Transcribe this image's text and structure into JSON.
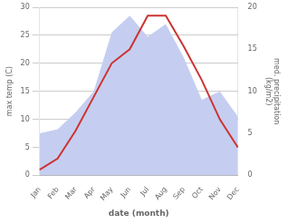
{
  "chart_data": {
    "type": "line",
    "categories": [
      "Jan",
      "Feb",
      "Mar",
      "Apr",
      "May",
      "Jun",
      "Jul",
      "Aug",
      "Sep",
      "Oct",
      "Nov",
      "Dec"
    ],
    "series": [
      {
        "type": "area",
        "color": "#c5cef0",
        "axis": "y2",
        "values": [
          5.0,
          5.5,
          7.5,
          10.0,
          17.0,
          19.0,
          16.5,
          18.0,
          14.0,
          9.0,
          10.0,
          7.0
        ]
      },
      {
        "type": "line",
        "color": "#cc3333",
        "values": [
          1,
          3,
          8,
          14,
          20,
          22.5,
          28.5,
          28.5,
          23,
          17,
          10,
          5
        ]
      }
    ],
    "xlabel": "date (month)",
    "ylabel": "max temp (C)",
    "y2label": "med. precipitation\n(kg/m2)",
    "ylim": [
      0,
      30
    ],
    "yticks": [
      0,
      5,
      10,
      15,
      20,
      25,
      30
    ],
    "y2lim": [
      0,
      20
    ],
    "y2ticks": [
      0,
      5,
      10,
      15,
      20
    ],
    "grid": true
  }
}
